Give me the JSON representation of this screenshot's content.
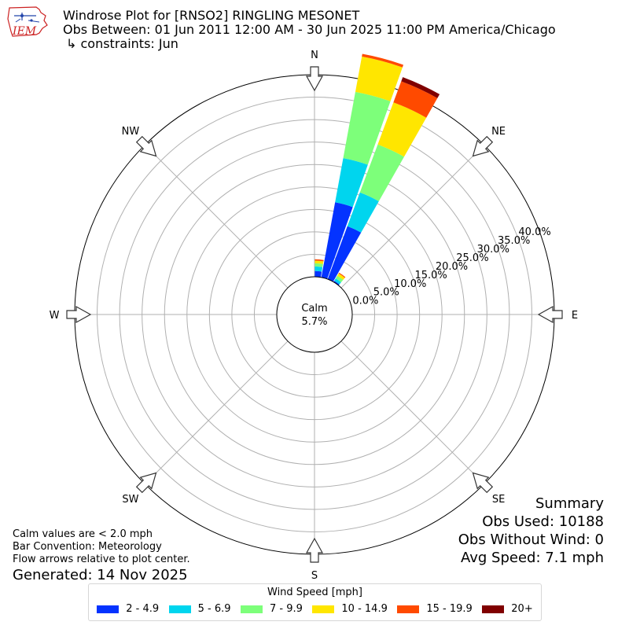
{
  "header": {
    "title": "Windrose Plot for [RNSO2] RINGLING MESONET",
    "obs_between": "Obs Between: 01 Jun 2011 12:00 AM - 30 Jun 2025 11:00 PM America/Chicago",
    "constraints": "↳ constraints: Jun"
  },
  "logo": {
    "text": "IEM",
    "color": "#cc2222"
  },
  "summary": {
    "heading": "Summary",
    "obs_used": "Obs Used: 10188",
    "obs_without_wind": "Obs Without Wind: 0",
    "avg_speed": "Avg Speed: 7.1 mph"
  },
  "notes": {
    "calm": "Calm values are < 2.0 mph",
    "bar_convention": "Bar Convention: Meteorology",
    "flow_arrows": "Flow arrows relative to plot center.",
    "generated": "Generated: 14 Nov 2025"
  },
  "chart_data": {
    "type": "windrose",
    "calm": {
      "label": "Calm",
      "value": "5.7%"
    },
    "directions": [
      {
        "label": "N",
        "angle": 0
      },
      {
        "label": "NE",
        "angle": 45
      },
      {
        "label": "E",
        "angle": 90
      },
      {
        "label": "SE",
        "angle": 135
      },
      {
        "label": "S",
        "angle": 180
      },
      {
        "label": "SW",
        "angle": 225
      },
      {
        "label": "W",
        "angle": 270
      },
      {
        "label": "NW",
        "angle": 315
      }
    ],
    "radial_ticks": [
      "0.0%",
      "5.0%",
      "10.0%",
      "15.0%",
      "20.0%",
      "25.0%",
      "30.0%",
      "35.0%",
      "40.0%"
    ],
    "radial_max": 45,
    "legend_title": "Wind Speed [mph]",
    "bins": [
      {
        "name": "2 - 4.9",
        "color": "#0433ff"
      },
      {
        "name": "5 - 6.9",
        "color": "#00d5ee"
      },
      {
        "name": "7 - 9.9",
        "color": "#7dff7a"
      },
      {
        "name": "10 - 14.9",
        "color": "#ffe600"
      },
      {
        "name": "15 - 19.9",
        "color": "#ff4a00"
      },
      {
        "name": "20+",
        "color": "#800000"
      }
    ],
    "sectors": [
      {
        "direction": 5,
        "values": [
          1.3,
          1.0,
          0.7,
          0.6,
          0.3,
          0.0
        ]
      },
      {
        "direction": 15,
        "values": [
          17.0,
          10.0,
          15.0,
          8.0,
          0.6,
          0.0
        ]
      },
      {
        "direction": 25,
        "values": [
          12.6,
          8.0,
          11.4,
          10.0,
          5.0,
          1.0
        ]
      },
      {
        "direction": 35,
        "values": [
          0.3,
          0.6,
          0.7,
          0.6,
          0.2,
          0.0
        ]
      }
    ],
    "grid": true
  }
}
